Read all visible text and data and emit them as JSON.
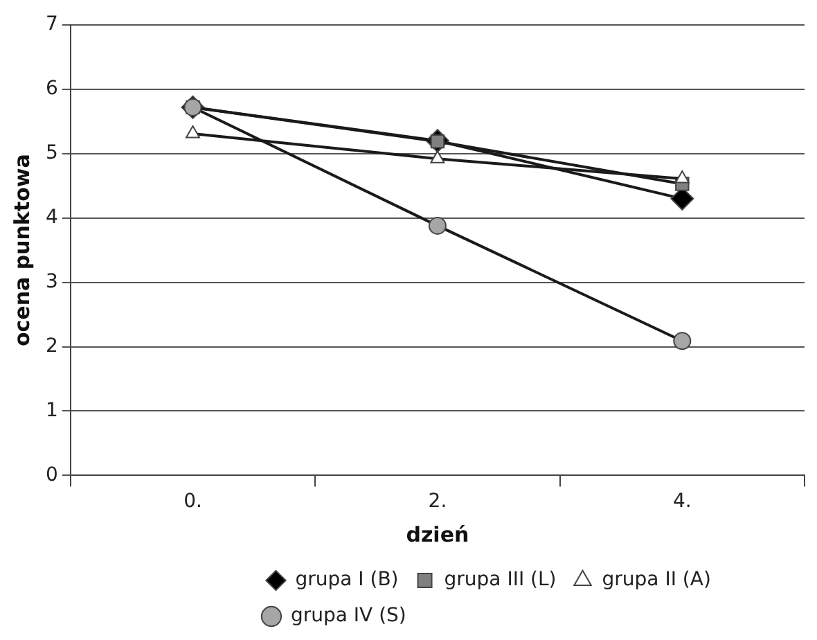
{
  "chart_data": {
    "type": "line",
    "xlabel": "dzień",
    "ylabel": "ocena punktowa",
    "categories": [
      "0.",
      "2.",
      "4."
    ],
    "ylim": [
      0,
      7
    ],
    "yticks": [
      0,
      1,
      2,
      3,
      4,
      5,
      6,
      7
    ],
    "grid": "y",
    "legend": "bottom",
    "line_style": "solid",
    "series": [
      {
        "name": "grupa I (B)",
        "color": "#000000",
        "marker": "diamond",
        "values": [
          5.72,
          5.2,
          4.3
        ]
      },
      {
        "name": "grupa III (L)",
        "color": "#808080",
        "marker": "square",
        "values": [
          5.72,
          5.19,
          4.53
        ]
      },
      {
        "name": "grupa II (A)",
        "color": "#ffffff",
        "marker": "triangle",
        "values": [
          5.31,
          4.92,
          4.61
        ]
      },
      {
        "name": "grupa IV (S)",
        "color": "#a6a6a6",
        "marker": "circle",
        "values": [
          5.72,
          3.88,
          2.09
        ]
      }
    ]
  }
}
